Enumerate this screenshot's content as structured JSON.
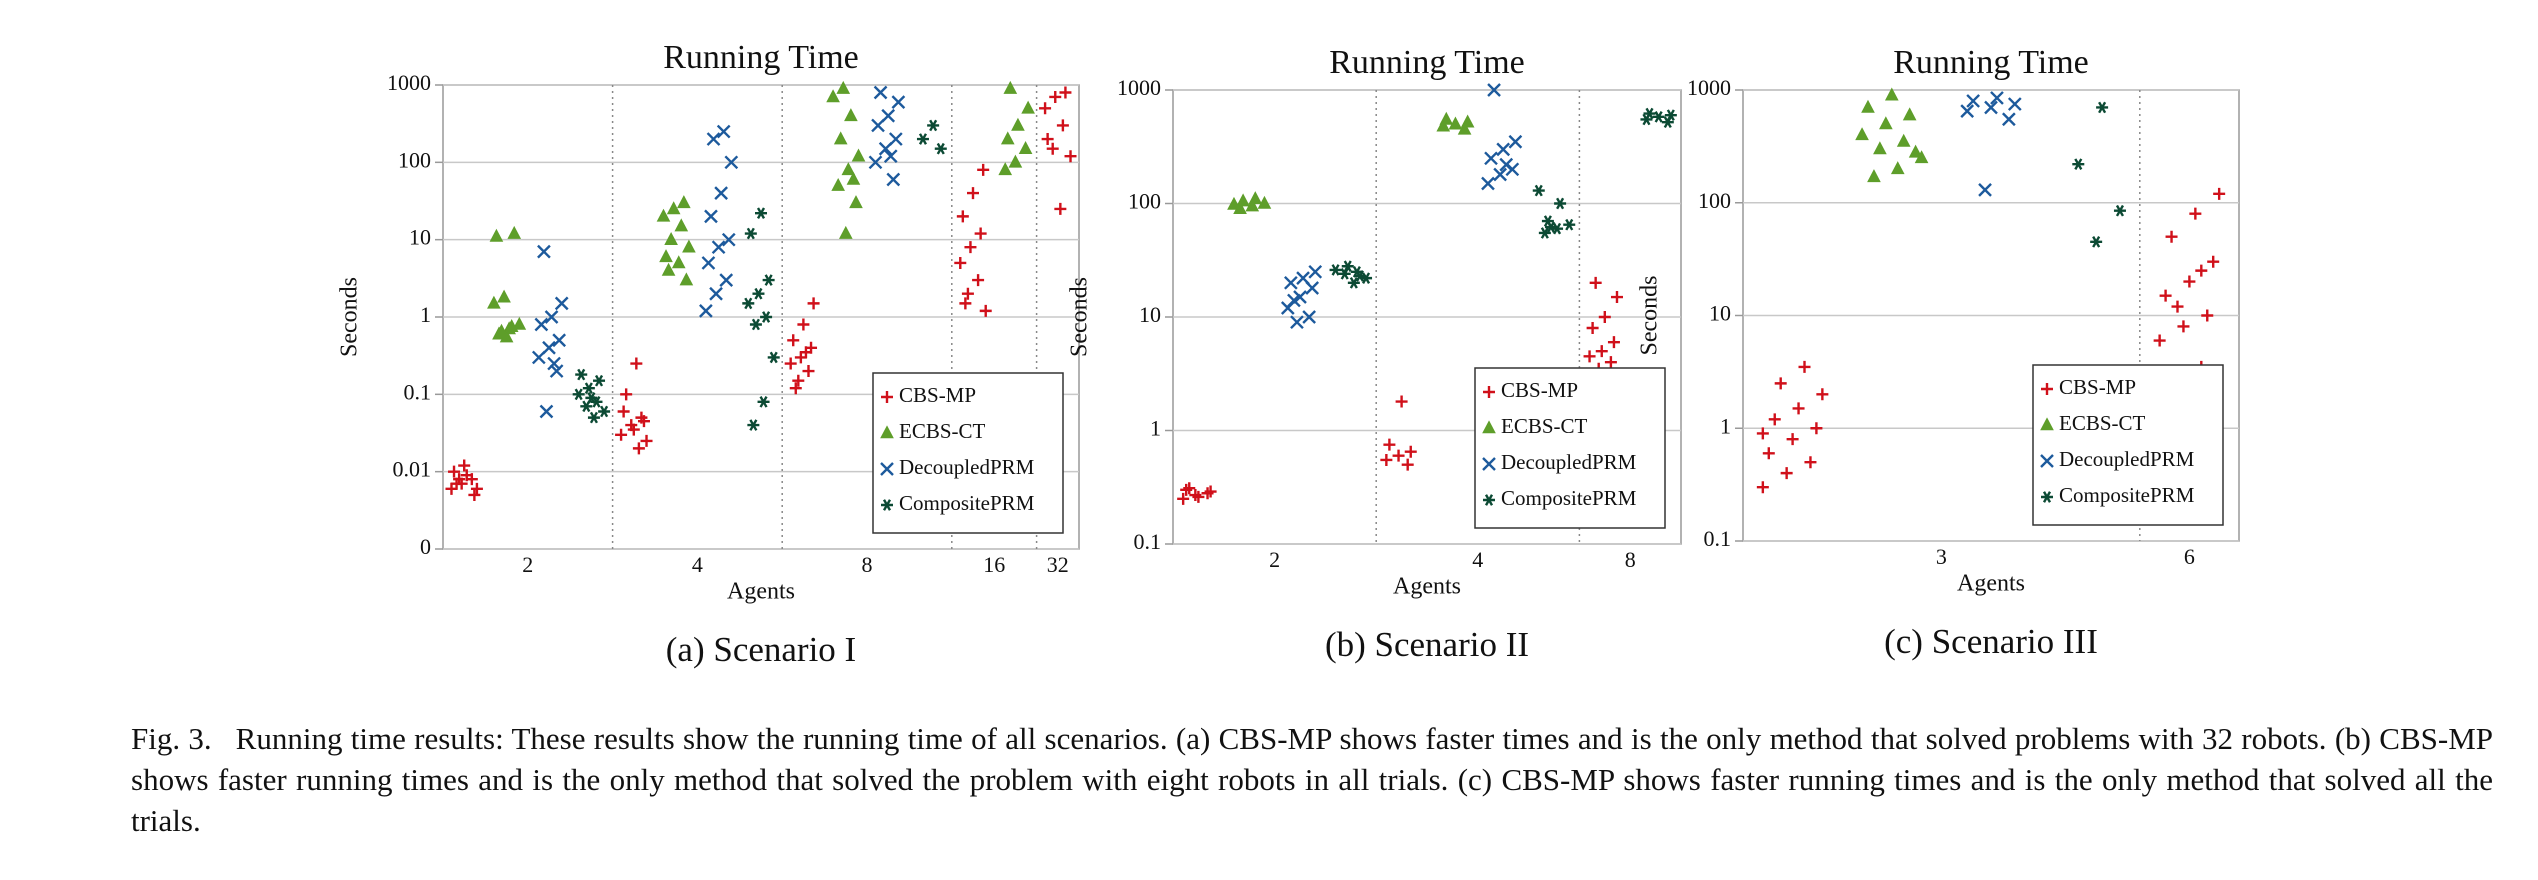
{
  "chart_data": [
    {
      "type": "scatter",
      "title": "Running Time",
      "x_label": "Agents",
      "y_label": "Seconds",
      "caption": "(a) Scenario I",
      "categories": [
        "2",
        "4",
        "8",
        "16",
        "32"
      ],
      "log_y": true,
      "grid": true,
      "legend": "lower right",
      "ylim": [
        0.001,
        1000
      ],
      "yticks": [
        {
          "value": 0.001,
          "label": "0"
        },
        0.01,
        0.1,
        1,
        10,
        100,
        1000
      ],
      "series": [
        {
          "name": "CBS-MP",
          "color": "#d0101a",
          "marker": "plus",
          "values": [
            [
              0.006,
              0.007,
              0.008,
              0.01,
              0.012,
              0.005,
              0.007,
              0.009,
              0.006,
              0.008
            ],
            [
              0.02,
              0.03,
              0.04,
              0.05,
              0.06,
              0.035,
              0.045,
              0.1,
              0.25,
              0.025
            ],
            [
              0.15,
              0.2,
              0.25,
              0.3,
              0.4,
              0.5,
              0.8,
              1.5,
              0.12,
              0.35
            ],
            [
              1.2,
              2,
              3,
              5,
              8,
              12,
              20,
              40,
              80,
              1.5
            ],
            [
              25,
              120,
              150,
              300,
              500,
              700,
              800,
              200
            ]
          ]
        },
        {
          "name": "ECBS-CT",
          "color": "#5e9e2a",
          "marker": "triangle",
          "values": [
            [
              0.6,
              0.7,
              0.8,
              0.65,
              0.75,
              1.5,
              1.8,
              12,
              11,
              0.55
            ],
            [
              3,
              4,
              5,
              8,
              10,
              15,
              20,
              25,
              30,
              6
            ],
            [
              12,
              30,
              50,
              80,
              120,
              200,
              400,
              700,
              900,
              60
            ],
            [
              80,
              100,
              150,
              200,
              300,
              500,
              900
            ],
            null
          ]
        },
        {
          "name": "DecoupledPRM",
          "color": "#1d5a9c",
          "marker": "cross",
          "values": [
            [
              0.06,
              0.2,
              0.3,
              0.4,
              0.5,
              0.8,
              1,
              1.5,
              7,
              0.25
            ],
            [
              1.2,
              2,
              3,
              5,
              8,
              10,
              20,
              40,
              100,
              200,
              250
            ],
            [
              60,
              100,
              150,
              200,
              300,
              400,
              600,
              800,
              120
            ],
            null,
            null
          ]
        },
        {
          "name": "CompositePRM",
          "color": "#0c4a34",
          "marker": "star",
          "values": [
            [
              0.05,
              0.06,
              0.07,
              0.08,
              0.1,
              0.12,
              0.15,
              0.18,
              0.09
            ],
            [
              0.04,
              0.08,
              0.3,
              0.8,
              1,
              1.5,
              2,
              3,
              12,
              22
            ],
            [
              150,
              200,
              300
            ],
            null,
            null
          ]
        }
      ]
    },
    {
      "type": "scatter",
      "title": "Running Time",
      "x_label": "Agents",
      "y_label": "Seconds",
      "caption": "(b) Scenario II",
      "categories": [
        "2",
        "4",
        "8"
      ],
      "log_y": true,
      "grid": true,
      "legend": "lower right",
      "ylim": [
        0.1,
        1000
      ],
      "yticks": [
        0.1,
        1,
        10,
        100,
        1000
      ],
      "series": [
        {
          "name": "CBS-MP",
          "color": "#d0101a",
          "marker": "plus",
          "values": [
            [
              0.25,
              0.27,
              0.28,
              0.3,
              0.26,
              0.29,
              0.31
            ],
            [
              0.5,
              0.55,
              0.6,
              0.65,
              0.75,
              1.8
            ],
            [
              3.5,
              4,
              4.5,
              5,
              6,
              8,
              10,
              15,
              20
            ]
          ]
        },
        {
          "name": "ECBS-CT",
          "color": "#5e9e2a",
          "marker": "triangle",
          "values": [
            [
              90,
              95,
              100,
              105,
              110,
              98
            ],
            [
              450,
              480,
              500,
              520,
              550
            ],
            null
          ]
        },
        {
          "name": "DecoupledPRM",
          "color": "#1d5a9c",
          "marker": "cross",
          "values": [
            [
              9,
              10,
              12,
              15,
              18,
              20,
              22,
              25,
              14
            ],
            [
              150,
              180,
              200,
              250,
              300,
              350,
              1000,
              220
            ],
            null
          ]
        },
        {
          "name": "CompositePRM",
          "color": "#0c4a34",
          "marker": "star",
          "values": [
            [
              20,
              22,
              24,
              25,
              26,
              28,
              23
            ],
            [
              55,
              60,
              65,
              70,
              100,
              130,
              62
            ],
            [
              520,
              550,
              580,
              600,
              620
            ]
          ]
        }
      ]
    },
    {
      "type": "scatter",
      "title": "Running Time",
      "x_label": "Agents",
      "y_label": "Seconds",
      "caption": "(c) Scenario III",
      "categories": [
        "3",
        "6"
      ],
      "log_y": true,
      "grid": true,
      "legend": "lower right",
      "ylim": [
        0.1,
        1000
      ],
      "yticks": [
        0.1,
        1,
        10,
        100,
        1000
      ],
      "series": [
        {
          "name": "CBS-MP",
          "color": "#d0101a",
          "marker": "plus",
          "values": [
            [
              0.3,
              0.4,
              0.5,
              0.6,
              0.8,
              1,
              1.2,
              1.5,
              2,
              2.5,
              3.5,
              0.9
            ],
            [
              3.5,
              6,
              8,
              10,
              15,
              20,
              30,
              50,
              80,
              120,
              12,
              25
            ]
          ]
        },
        {
          "name": "ECBS-CT",
          "color": "#5e9e2a",
          "marker": "triangle",
          "values": [
            [
              170,
              200,
              250,
              300,
              350,
              400,
              500,
              600,
              700,
              900,
              280
            ],
            null
          ]
        },
        {
          "name": "DecoupledPRM",
          "color": "#1d5a9c",
          "marker": "cross",
          "values": [
            [
              130,
              550,
              650,
              700,
              750,
              800,
              850
            ],
            null
          ]
        },
        {
          "name": "CompositePRM",
          "color": "#0c4a34",
          "marker": "star",
          "values": [
            [
              45,
              85,
              220,
              700
            ],
            null
          ]
        }
      ]
    }
  ],
  "figure_caption": {
    "label": "Fig. 3.",
    "text": "Running time results: These results show the running time of all scenarios. (a) CBS-MP shows faster times and is the only method that solved problems with 32 robots. (b) CBS-MP shows faster running times and is the only method that solved the problem with eight robots in all trials. (c) CBS-MP shows faster running times and is the only method that solved all the trials."
  }
}
